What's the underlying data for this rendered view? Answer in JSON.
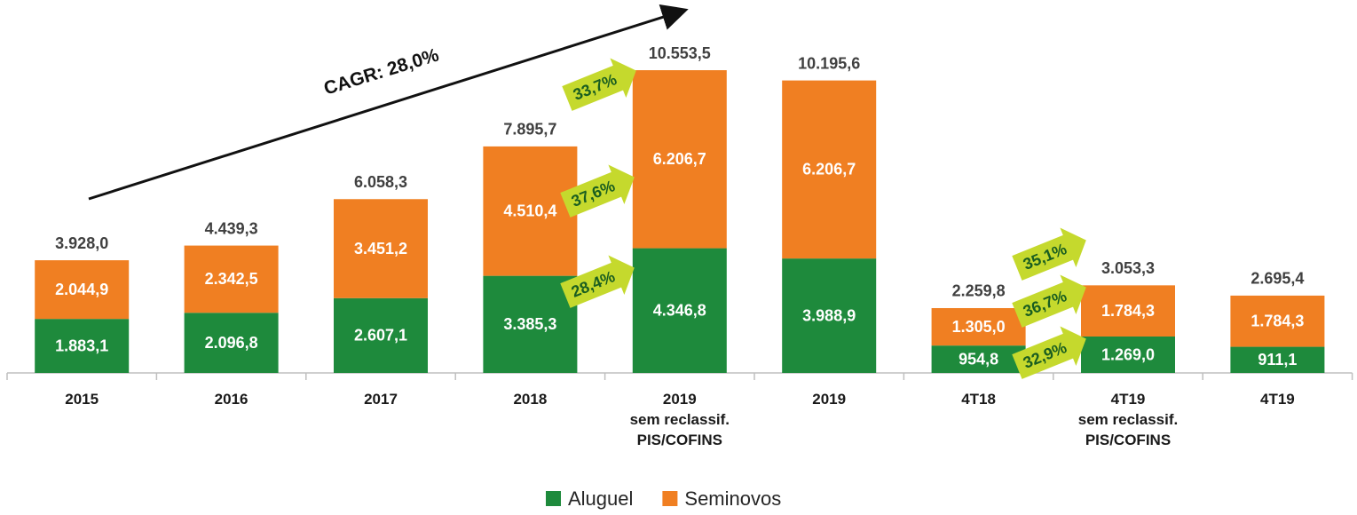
{
  "chart_data": {
    "type": "stacked-bar",
    "categories": [
      "2015",
      "2016",
      "2017",
      "2018",
      "2019\nsem reclassif.\nPIS/COFINS",
      "2019",
      "4T18",
      "4T19\nsem reclassif.\nPIS/COFINS",
      "4T19"
    ],
    "series": [
      {
        "name": "Aluguel",
        "color": "#1e8a3c",
        "values": [
          1883.1,
          2096.8,
          2607.1,
          3385.3,
          4346.8,
          3988.9,
          954.8,
          1269.0,
          911.1
        ],
        "value_labels": [
          "1.883,1",
          "2.096,8",
          "2.607,1",
          "3.385,3",
          "4.346,8",
          "3.988,9",
          "954,8",
          "1.269,0",
          "911,1"
        ]
      },
      {
        "name": "Seminovos",
        "color": "#f07f22",
        "values": [
          2044.9,
          2342.5,
          3451.2,
          4510.4,
          6206.7,
          6206.7,
          1305.0,
          1784.3,
          1784.3
        ],
        "value_labels": [
          "2.044,9",
          "2.342,5",
          "3.451,2",
          "4.510,4",
          "6.206,7",
          "6.206,7",
          "1.305,0",
          "1.784,3",
          "1.784,3"
        ]
      }
    ],
    "totals": [
      3928.0,
      4439.3,
      6058.3,
      7895.7,
      10553.5,
      10195.6,
      2259.8,
      3053.3,
      2695.4
    ],
    "total_labels": [
      "3.928,0",
      "4.439,3",
      "6.058,3",
      "7.895,7",
      "10.553,5",
      "10.195,6",
      "2.259,8",
      "3.053,3",
      "2.695,4"
    ],
    "ylim": [
      0,
      13000
    ],
    "legend": "bottom",
    "annotations": {
      "cagr": "CAGR: 28,0%",
      "growth": [
        "33,7%",
        "37,6%",
        "28,4%",
        "35,1%",
        "36,7%",
        "32,9%"
      ]
    }
  }
}
